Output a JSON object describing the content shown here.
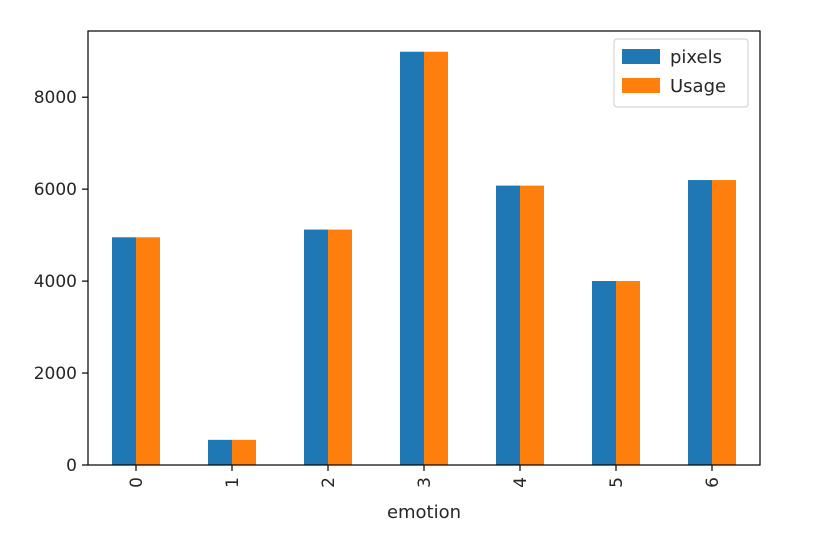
{
  "chart_data": {
    "type": "bar",
    "categories": [
      "0",
      "1",
      "2",
      "3",
      "4",
      "5",
      "6"
    ],
    "series": [
      {
        "name": "pixels",
        "color": "#1f77b4",
        "values": [
          4953,
          547,
          5121,
          8989,
          6077,
          4002,
          6198
        ]
      },
      {
        "name": "Usage",
        "color": "#ff7f0e",
        "values": [
          4953,
          547,
          5121,
          8989,
          6077,
          4002,
          6198
        ]
      }
    ],
    "xlabel": "emotion",
    "ylabel": "",
    "ylim": [
      0,
      9440
    ],
    "yticks": [
      0,
      2000,
      4000,
      6000,
      8000
    ],
    "legend_position": "top-right",
    "grid": false
  }
}
